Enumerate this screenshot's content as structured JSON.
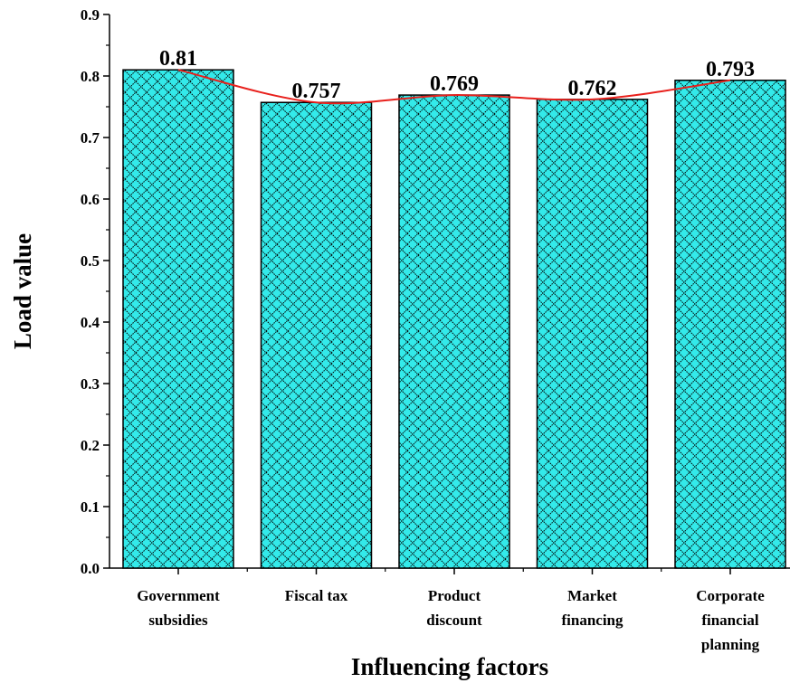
{
  "chart_data": {
    "type": "bar",
    "categories": [
      [
        "Government",
        "subsidies"
      ],
      [
        "Fiscal tax"
      ],
      [
        "Product",
        "discount"
      ],
      [
        "Market",
        "financing"
      ],
      [
        "Corporate",
        "financial",
        "planning"
      ]
    ],
    "values": [
      0.81,
      0.757,
      0.769,
      0.762,
      0.793
    ],
    "value_labels": [
      "0.81",
      "0.757",
      "0.769",
      "0.762",
      "0.793"
    ],
    "overlay_line": true,
    "xlabel": "Influencing factors",
    "ylabel": "Load value",
    "ylim": [
      0,
      0.9
    ],
    "yticks": [
      "0.0",
      "0.1",
      "0.2",
      "0.3",
      "0.4",
      "0.5",
      "0.6",
      "0.7",
      "0.8",
      "0.9"
    ],
    "grid": false,
    "legend": false,
    "colors": {
      "bar_fill": "#33eaea",
      "bar_hatch": "#000000",
      "bar_edge": "#000000",
      "line": "#e8201c"
    }
  }
}
